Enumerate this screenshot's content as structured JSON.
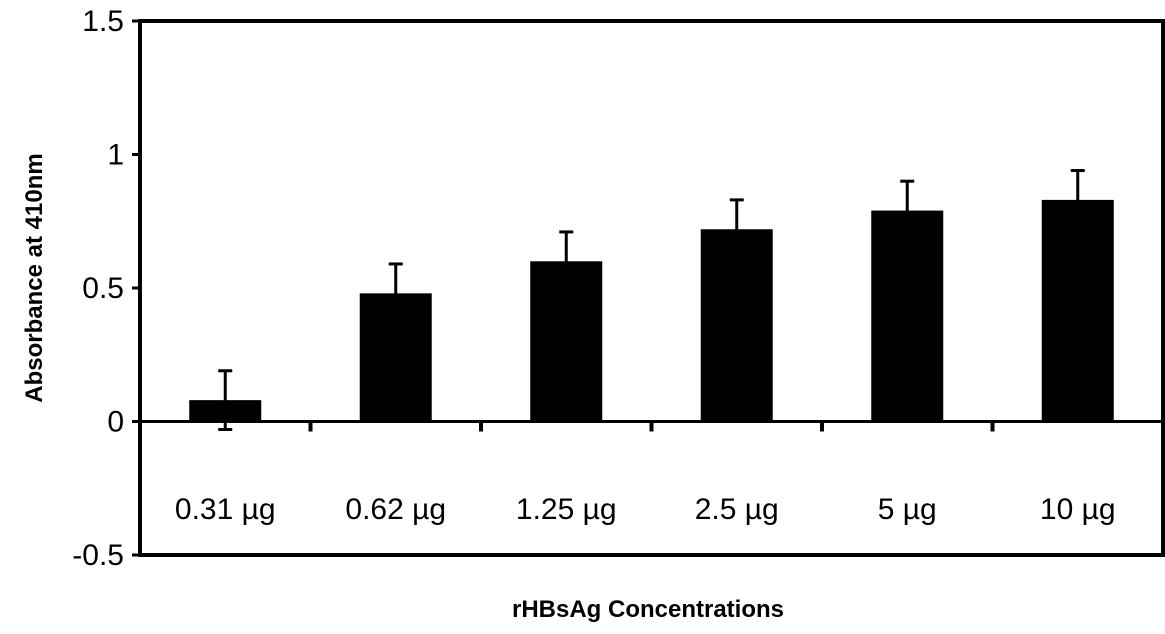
{
  "chart_data": {
    "type": "bar",
    "title": "",
    "xlabel": "rHBsAg Concentrations",
    "ylabel": "Absorbance at 410nm",
    "categories": [
      "0.31 µg",
      "0.62 µg",
      "1.25 µg",
      "2.5 µg",
      "5 µg",
      "10 µg"
    ],
    "values": [
      0.08,
      0.48,
      0.6,
      0.72,
      0.79,
      0.83
    ],
    "errors": [
      0.11,
      0.11,
      0.11,
      0.11,
      0.11,
      0.11
    ],
    "ylim": [
      -0.5,
      1.5
    ],
    "yticks": [
      -0.5,
      0,
      0.5,
      1,
      1.5
    ],
    "ytick_labels": [
      "-0.5",
      "0",
      "0.5",
      "1",
      "1.5"
    ],
    "bar_color": "#000000",
    "grid": false,
    "legend": "none"
  }
}
